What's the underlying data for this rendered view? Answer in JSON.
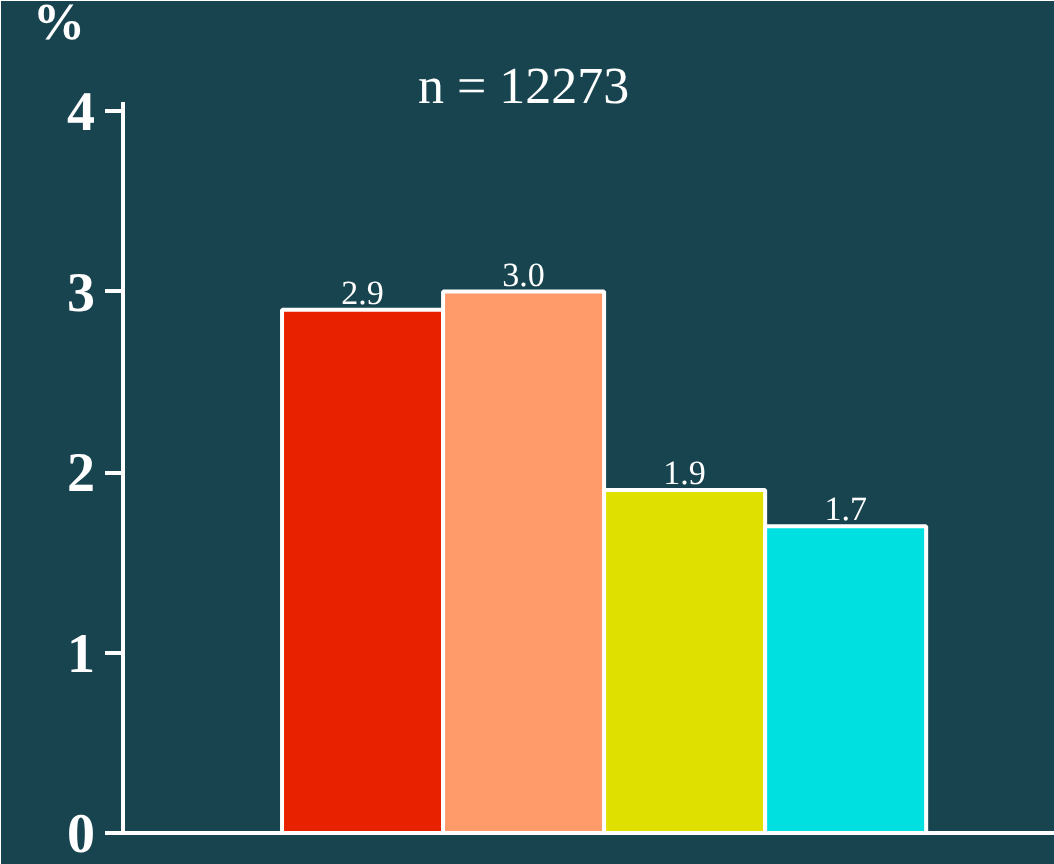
{
  "chart_data": {
    "type": "bar",
    "title": "n = 12273",
    "ylabel": "%",
    "categories": [
      null,
      null,
      null,
      null
    ],
    "values": [
      2.9,
      3.0,
      1.9,
      1.7
    ],
    "value_labels": [
      "2.9",
      "3.0",
      "1.9",
      "1.7"
    ],
    "colors": [
      "#e82200",
      "#ff9a6a",
      "#e0e000",
      "#00e0e0"
    ],
    "ylim": [
      0,
      4.05
    ],
    "yticks": [
      0,
      1,
      2,
      3,
      4
    ],
    "grid": false,
    "tick_labels": "y"
  }
}
